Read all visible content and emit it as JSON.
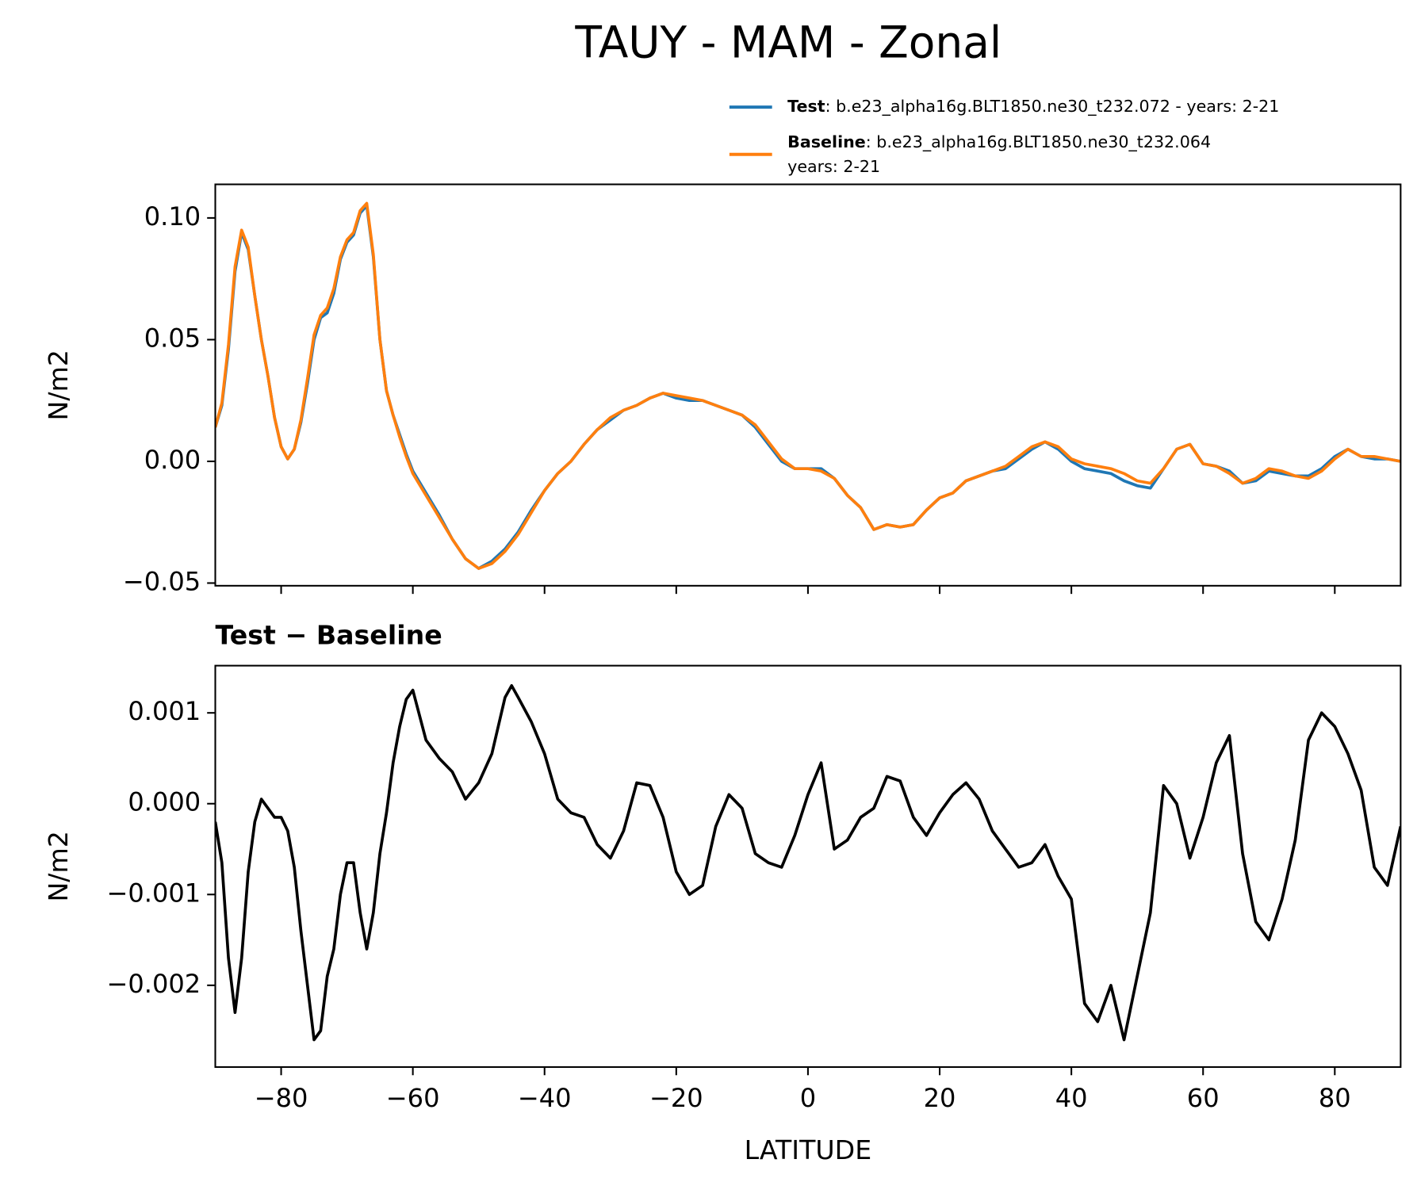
{
  "title": "TAUY - MAM - Zonal",
  "chart_data": [
    {
      "type": "line",
      "ylabel": "N/m2",
      "x": [
        -90,
        -89,
        -88,
        -87,
        -86,
        -85,
        -84,
        -83,
        -82,
        -81,
        -80,
        -79,
        -78,
        -77,
        -76,
        -75,
        -74,
        -73,
        -72,
        -71,
        -70,
        -69,
        -68,
        -67,
        -66,
        -65,
        -64,
        -63,
        -62,
        -61,
        -60,
        -58,
        -56,
        -54,
        -52,
        -50,
        -48,
        -46,
        -44,
        -42,
        -40,
        -38,
        -36,
        -34,
        -32,
        -30,
        -28,
        -26,
        -24,
        -22,
        -20,
        -18,
        -16,
        -14,
        -12,
        -10,
        -8,
        -6,
        -4,
        -2,
        0,
        2,
        4,
        6,
        8,
        10,
        12,
        14,
        16,
        18,
        20,
        22,
        24,
        26,
        28,
        30,
        32,
        34,
        36,
        38,
        40,
        42,
        44,
        46,
        48,
        50,
        52,
        54,
        56,
        58,
        60,
        62,
        64,
        66,
        68,
        70,
        72,
        74,
        76,
        78,
        80,
        82,
        84,
        86,
        88,
        90
      ],
      "series": [
        {
          "name": "Test",
          "description": [
            ": b.e23_alpha16g.BLT1850.ne30_t232.072 - years: 2-21"
          ],
          "color": "#1f77b4",
          "values": [
            0.014,
            0.023,
            0.046,
            0.078,
            0.094,
            0.087,
            0.068,
            0.05,
            0.035,
            0.018,
            0.006,
            0.001,
            0.005,
            0.016,
            0.032,
            0.05,
            0.059,
            0.061,
            0.069,
            0.083,
            0.09,
            0.093,
            0.102,
            0.105,
            0.084,
            0.05,
            0.029,
            0.019,
            0.011,
            0.003,
            -0.004,
            -0.013,
            -0.022,
            -0.032,
            -0.04,
            -0.044,
            -0.041,
            -0.036,
            -0.029,
            -0.02,
            -0.012,
            -0.005,
            0.0,
            0.007,
            0.013,
            0.017,
            0.021,
            0.023,
            0.026,
            0.028,
            0.026,
            0.025,
            0.025,
            0.023,
            0.021,
            0.019,
            0.014,
            0.007,
            0.0,
            -0.003,
            -0.003,
            -0.003,
            -0.007,
            -0.014,
            -0.019,
            -0.028,
            -0.026,
            -0.027,
            -0.026,
            -0.02,
            -0.015,
            -0.013,
            -0.008,
            -0.006,
            -0.004,
            -0.003,
            0.001,
            0.005,
            0.008,
            0.005,
            0.0,
            -0.003,
            -0.004,
            -0.005,
            -0.008,
            -0.01,
            -0.011,
            -0.003,
            0.005,
            0.007,
            -0.001,
            -0.002,
            -0.004,
            -0.009,
            -0.008,
            -0.004,
            -0.005,
            -0.006,
            -0.006,
            -0.003,
            0.002,
            0.005,
            0.002,
            0.001,
            0.001,
            0.0
          ]
        },
        {
          "name": "Baseline",
          "description": [
            ": b.e23_alpha16g.BLT1850.ne30_t232.064",
            "years: 2-21"
          ],
          "color": "#ff7f0e",
          "values": [
            0.014,
            0.024,
            0.048,
            0.08,
            0.095,
            0.088,
            0.068,
            0.05,
            0.035,
            0.018,
            0.006,
            0.001,
            0.005,
            0.017,
            0.034,
            0.052,
            0.06,
            0.063,
            0.071,
            0.084,
            0.091,
            0.094,
            0.103,
            0.106,
            0.085,
            0.05,
            0.029,
            0.019,
            0.01,
            0.002,
            -0.005,
            -0.014,
            -0.023,
            -0.032,
            -0.04,
            -0.044,
            -0.042,
            -0.037,
            -0.03,
            -0.021,
            -0.012,
            -0.005,
            0.0,
            0.007,
            0.013,
            0.018,
            0.021,
            0.023,
            0.026,
            0.028,
            0.027,
            0.026,
            0.025,
            0.023,
            0.021,
            0.019,
            0.015,
            0.008,
            0.001,
            -0.003,
            -0.003,
            -0.004,
            -0.007,
            -0.014,
            -0.019,
            -0.028,
            -0.026,
            -0.027,
            -0.026,
            -0.02,
            -0.015,
            -0.013,
            -0.008,
            -0.006,
            -0.004,
            -0.002,
            0.002,
            0.006,
            0.008,
            0.006,
            0.001,
            -0.001,
            -0.002,
            -0.003,
            -0.005,
            -0.008,
            -0.009,
            -0.003,
            0.005,
            0.007,
            -0.001,
            -0.002,
            -0.005,
            -0.009,
            -0.007,
            -0.003,
            -0.004,
            -0.006,
            -0.007,
            -0.004,
            0.001,
            0.005,
            0.002,
            0.002,
            0.001,
            0.0
          ]
        }
      ],
      "xlim": [
        -90,
        90
      ],
      "xticks": [
        {
          "value": -80,
          "label": "−80"
        },
        {
          "value": -60,
          "label": "−60"
        },
        {
          "value": -40,
          "label": "−40"
        },
        {
          "value": -20,
          "label": "−20"
        },
        0,
        20,
        40,
        60,
        80
      ],
      "xtick_labels": false,
      "ylim": [
        -0.0511,
        0.1138
      ],
      "yticks": [
        {
          "value": -0.05,
          "label": "−0.05"
        },
        {
          "value": 0,
          "label": "0.00"
        },
        {
          "value": 0.05,
          "label": "0.05"
        },
        {
          "value": 0.1,
          "label": "0.10"
        }
      ],
      "legend": "upper right"
    },
    {
      "type": "line",
      "title": "Test − Baseline",
      "xlabel": "LATITUDE",
      "ylabel": "N/m2",
      "x": [
        -90,
        -89,
        -88,
        -87,
        -86,
        -85,
        -84,
        -83,
        -82,
        -81,
        -80,
        -79,
        -78,
        -77,
        -76,
        -75,
        -74,
        -73,
        -72,
        -71,
        -70,
        -69,
        -68,
        -67,
        -66,
        -65,
        -64,
        -63,
        -62,
        -61,
        -60,
        -58,
        -56,
        -54,
        -52,
        -50,
        -48,
        -46,
        -45,
        -44,
        -42,
        -40,
        -38,
        -36,
        -34,
        -32,
        -30,
        -28,
        -26,
        -24,
        -22,
        -20,
        -18,
        -16,
        -14,
        -12,
        -10,
        -8,
        -6,
        -4,
        -2,
        0,
        2,
        4,
        6,
        8,
        10,
        12,
        14,
        16,
        18,
        20,
        22,
        24,
        26,
        28,
        30,
        32,
        34,
        36,
        38,
        40,
        42,
        44,
        46,
        48,
        50,
        52,
        54,
        56,
        58,
        60,
        62,
        64,
        66,
        68,
        70,
        72,
        74,
        76,
        78,
        80,
        82,
        84,
        86,
        88,
        90
      ],
      "series": [
        {
          "color": "#000000",
          "values": [
            -0.0002,
            -0.00065,
            -0.0017,
            -0.0023,
            -0.0017,
            -0.00075,
            -0.0002,
            5e-05,
            -5e-05,
            -0.00015,
            -0.00015,
            -0.0003,
            -0.0007,
            -0.0014,
            -0.002,
            -0.0026,
            -0.0025,
            -0.0019,
            -0.0016,
            -0.001,
            -0.00065,
            -0.00065,
            -0.0012,
            -0.0016,
            -0.0012,
            -0.00055,
            -0.0001,
            0.00045,
            0.00085,
            0.00115,
            0.00125,
            0.0007,
            0.0005,
            0.00035,
            5e-05,
            0.00023,
            0.00055,
            0.00117,
            0.0013,
            0.00117,
            0.0009,
            0.00055,
            5e-05,
            -0.0001,
            -0.00015,
            -0.00045,
            -0.0006,
            -0.0003,
            0.00023,
            0.0002,
            -0.00015,
            -0.00075,
            -0.001,
            -0.0009,
            -0.00025,
            0.0001,
            -5e-05,
            -0.00055,
            -0.00065,
            -0.0007,
            -0.00035,
            0.0001,
            0.00045,
            -0.0005,
            -0.0004,
            -0.00015,
            -5e-05,
            0.0003,
            0.00025,
            -0.00015,
            -0.00035,
            -0.0001,
            0.0001,
            0.00023,
            5e-05,
            -0.0003,
            -0.0005,
            -0.0007,
            -0.00065,
            -0.00045,
            -0.0008,
            -0.00105,
            -0.0022,
            -0.0024,
            -0.002,
            -0.0026,
            -0.0019,
            -0.0012,
            0.0002,
            0.0,
            -0.0006,
            -0.00015,
            0.00045,
            0.00075,
            -0.00055,
            -0.0013,
            -0.0015,
            -0.00105,
            -0.0004,
            0.0007,
            0.001,
            0.00085,
            0.00055,
            0.00015,
            -0.0007,
            -0.0009,
            -0.00025
          ]
        }
      ],
      "xlim": [
        -90,
        90
      ],
      "xticks": [
        {
          "value": -80,
          "label": "−80"
        },
        {
          "value": -60,
          "label": "−60"
        },
        {
          "value": -40,
          "label": "−40"
        },
        {
          "value": -20,
          "label": "−20"
        },
        0,
        20,
        40,
        60,
        80
      ],
      "xtick_labels": true,
      "ylim": [
        -0.0029,
        0.00152
      ],
      "yticks": [
        {
          "value": -0.002,
          "label": "−0.002"
        },
        {
          "value": -0.001,
          "label": "−0.001"
        },
        {
          "value": 0,
          "label": "0.000"
        },
        0.001
      ]
    }
  ]
}
